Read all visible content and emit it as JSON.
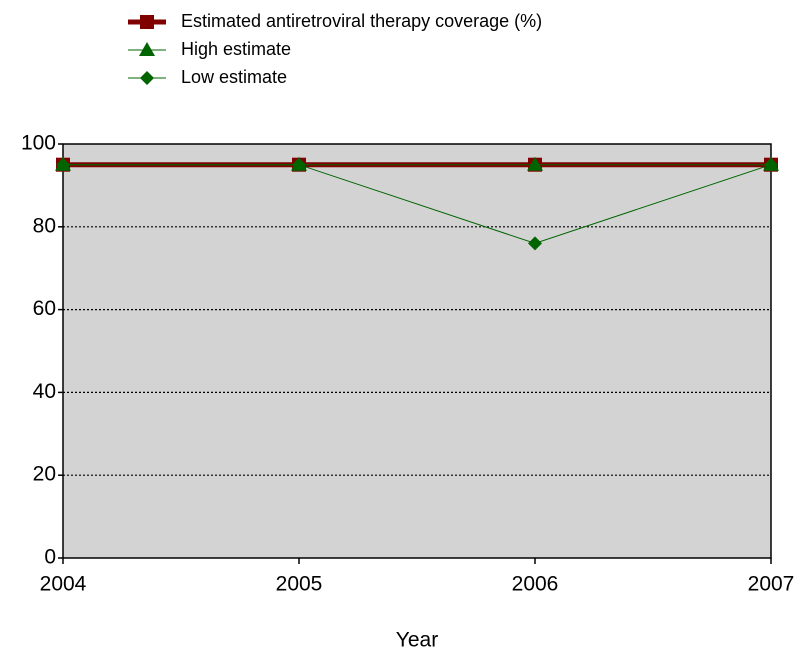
{
  "chart_data": {
    "type": "line",
    "x_label": "Year",
    "x": [
      2004,
      2005,
      2006,
      2007
    ],
    "xlim": [
      2004,
      2007
    ],
    "xticks": [
      2004,
      2005,
      2006,
      2007
    ],
    "ylim": [
      0,
      100
    ],
    "yticks": [
      0,
      20,
      40,
      60,
      80,
      100
    ],
    "grid": true,
    "series": [
      {
        "name": "Estimated antiretroviral therapy coverage (%)",
        "color": "#800000",
        "marker": "square",
        "values": [
          95,
          95,
          95,
          95
        ]
      },
      {
        "name": "High estimate",
        "color": "#006400",
        "marker": "triangle",
        "values": [
          95,
          95,
          95,
          95
        ]
      },
      {
        "name": "Low estimate",
        "color": "#006400",
        "marker": "diamond",
        "values": [
          95,
          95,
          76,
          95
        ]
      }
    ]
  }
}
